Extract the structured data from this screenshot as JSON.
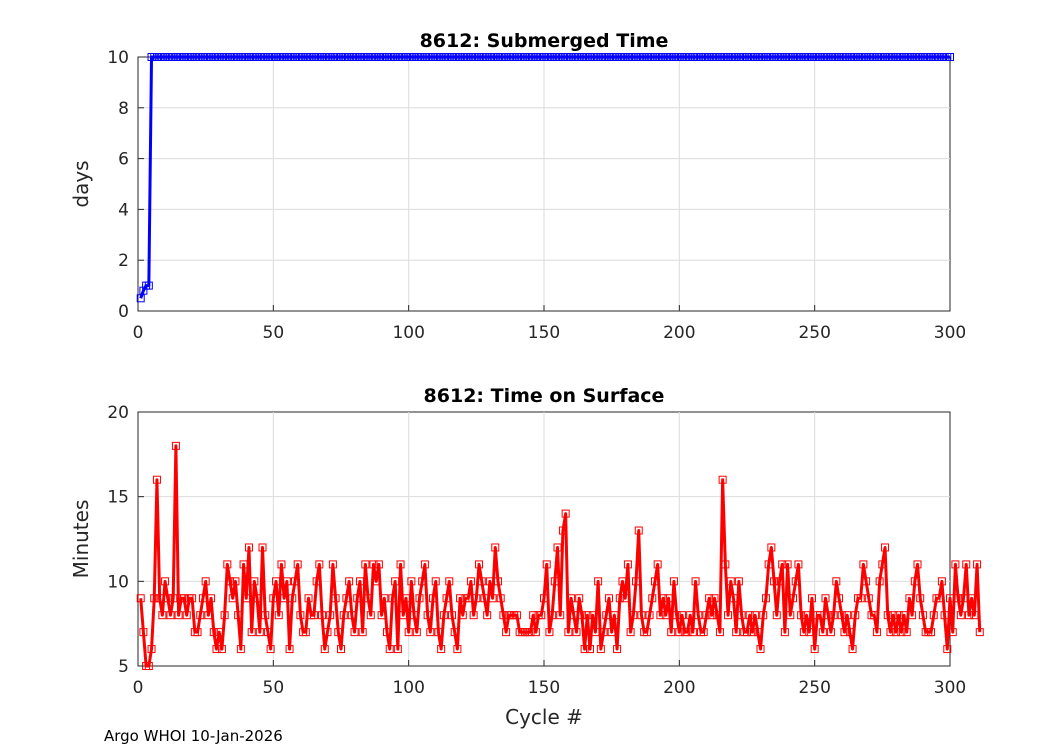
{
  "footer_text": "Argo WHOI 10-Jan-2026",
  "chart_data": [
    {
      "type": "line",
      "title": "8612: Submerged Time",
      "xlabel": "",
      "ylabel": "days",
      "xlim": [
        0,
        300
      ],
      "ylim": [
        0,
        10
      ],
      "xticks": [
        0,
        50,
        100,
        150,
        200,
        250,
        300
      ],
      "yticks": [
        0,
        2,
        4,
        6,
        8,
        10
      ],
      "grid": true,
      "marker": "square",
      "series": [
        {
          "color": "#0000ff",
          "points": [
            [
              1,
              0.5
            ],
            [
              2,
              0.8
            ],
            [
              3,
              1.0
            ],
            [
              4,
              1.0
            ],
            [
              5,
              10
            ],
            [
              6,
              10
            ]
          ],
          "constant_from": 6,
          "constant_to": 300,
          "constant_value": 10
        }
      ]
    },
    {
      "type": "line",
      "title": "8612: Time on Surface",
      "xlabel": "Cycle #",
      "ylabel": "Minutes",
      "xlim": [
        0,
        300
      ],
      "ylim": [
        5,
        20
      ],
      "xticks": [
        0,
        50,
        100,
        150,
        200,
        250,
        300
      ],
      "yticks": [
        5,
        10,
        15,
        20
      ],
      "grid": true,
      "marker": "square",
      "series": [
        {
          "color": "#ff0000",
          "x_start": 1,
          "values": [
            9,
            7,
            5,
            5,
            6,
            9,
            16,
            9,
            8,
            10,
            9,
            8,
            9,
            18,
            8,
            9,
            9,
            8,
            9,
            9,
            7,
            7,
            8,
            9,
            10,
            8,
            9,
            7,
            6,
            7,
            6,
            8,
            11,
            10,
            9,
            10,
            8,
            6,
            11,
            9,
            12,
            7,
            10,
            9,
            7,
            12,
            8,
            7,
            6,
            9,
            10,
            8,
            11,
            9,
            10,
            6,
            9,
            10,
            11,
            8,
            7,
            7,
            9,
            8,
            8,
            10,
            11,
            8,
            6,
            7,
            8,
            11,
            9,
            7,
            6,
            8,
            9,
            10,
            8,
            7,
            9,
            10,
            7,
            11,
            9,
            8,
            11,
            10,
            11,
            8,
            9,
            7,
            6,
            9,
            10,
            6,
            11,
            8,
            9,
            7,
            10,
            8,
            7,
            9,
            10,
            11,
            8,
            7,
            9,
            10,
            7,
            6,
            8,
            9,
            10,
            8,
            7,
            6,
            9,
            8,
            9,
            9,
            10,
            8,
            9,
            11,
            10,
            9,
            8,
            10,
            9,
            12,
            10,
            9,
            8,
            7,
            8,
            8,
            8,
            8,
            7,
            7,
            7,
            7,
            7,
            8,
            7,
            8,
            8,
            9,
            11,
            7,
            8,
            10,
            12,
            8,
            13,
            14,
            7,
            9,
            8,
            7,
            9,
            8,
            6,
            8,
            6,
            8,
            7,
            10,
            6,
            7,
            8,
            9,
            7,
            8,
            6,
            9,
            10,
            9,
            11,
            7,
            8,
            10,
            13,
            8,
            7,
            7,
            8,
            9,
            10,
            11,
            8,
            9,
            8,
            9,
            7,
            10,
            8,
            7,
            8,
            7,
            7,
            8,
            7,
            10,
            8,
            7,
            7,
            8,
            9,
            8,
            9,
            8,
            7,
            16,
            11,
            8,
            10,
            9,
            7,
            10,
            8,
            7,
            7,
            8,
            7,
            8,
            7,
            6,
            8,
            9,
            11,
            12,
            10,
            8,
            10,
            11,
            7,
            11,
            8,
            9,
            10,
            11,
            8,
            7,
            8,
            7,
            9,
            6,
            8,
            8,
            7,
            9,
            8,
            7,
            8,
            10,
            9,
            8,
            7,
            8,
            7,
            6,
            8,
            9,
            9,
            11,
            10,
            9,
            8,
            8,
            7,
            10,
            11,
            12,
            8,
            7,
            8,
            7,
            8,
            7,
            8,
            7,
            9,
            8,
            10,
            11,
            9,
            8,
            7,
            7,
            7,
            8,
            9,
            9,
            10,
            8,
            6,
            9,
            7,
            11,
            9,
            8,
            9,
            11,
            8,
            9,
            8,
            11,
            7
          ]
        }
      ]
    }
  ]
}
